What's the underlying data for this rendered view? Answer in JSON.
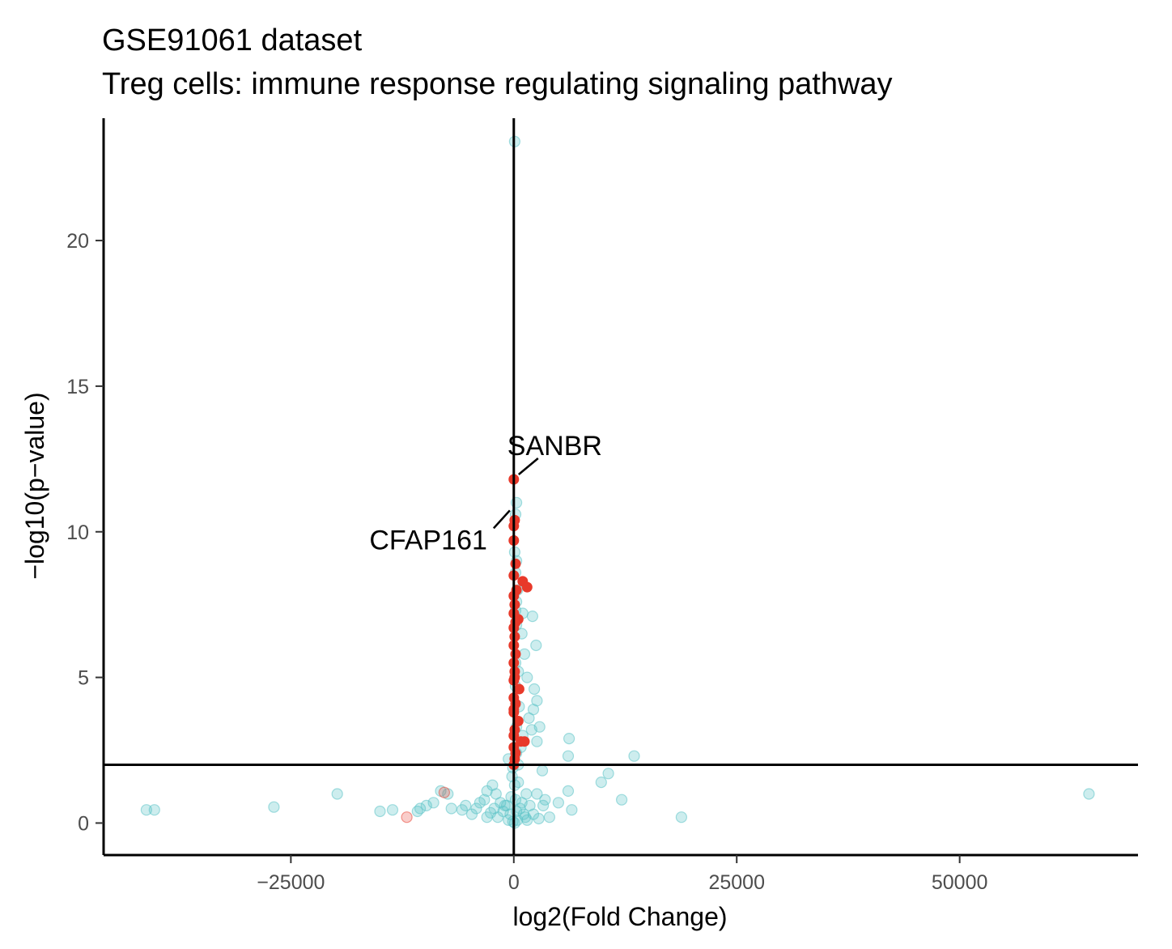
{
  "chart_data": {
    "type": "scatter",
    "title": "GSE91061 dataset",
    "subtitle": "Treg cells: immune response regulating signaling pathway",
    "xlabel": "log2(Fold Change)",
    "ylabel": "−log10(p−value)",
    "xlim": [
      -46000,
      70000
    ],
    "ylim": [
      -1.1,
      24.2
    ],
    "x_ticks": [
      -25000,
      0,
      25000,
      50000
    ],
    "x_tick_labels": [
      "−25000",
      "0",
      "25000",
      "50000"
    ],
    "y_ticks": [
      0,
      5,
      10,
      15,
      20
    ],
    "y_tick_labels": [
      "0",
      "5",
      "10",
      "15",
      "20"
    ],
    "threshold_lines": {
      "vertical_x": 0,
      "horizontal_y": 2
    },
    "grid": false,
    "colors": {
      "background": "#cbe9e9",
      "highlight": "#e8392a",
      "highlight_faded": "#f6bcb4",
      "axis": "#000000"
    },
    "series": [
      {
        "color": "#5bc2c6",
        "opacity": 0.3,
        "points": [
          [
            100,
            23.4
          ],
          [
            300,
            11.0
          ],
          [
            200,
            10.6
          ],
          [
            100,
            9.3
          ],
          [
            300,
            9.0
          ],
          [
            200,
            8.6
          ],
          [
            400,
            8.0
          ],
          [
            300,
            7.6
          ],
          [
            200,
            7.3
          ],
          [
            1000,
            7.2
          ],
          [
            2100,
            7.1
          ],
          [
            300,
            6.8
          ],
          [
            900,
            6.5
          ],
          [
            2500,
            6.1
          ],
          [
            1200,
            5.8
          ],
          [
            200,
            5.5
          ],
          [
            500,
            5.2
          ],
          [
            1500,
            5.0
          ],
          [
            200,
            4.7
          ],
          [
            2300,
            4.6
          ],
          [
            2600,
            4.2
          ],
          [
            600,
            4.0
          ],
          [
            2200,
            3.9
          ],
          [
            1700,
            3.6
          ],
          [
            300,
            3.3
          ],
          [
            2900,
            3.3
          ],
          [
            2000,
            3.2
          ],
          [
            1000,
            3.0
          ],
          [
            2600,
            2.8
          ],
          [
            6200,
            2.9
          ],
          [
            800,
            2.6
          ],
          [
            300,
            2.4
          ],
          [
            6100,
            2.3
          ],
          [
            -600,
            2.2
          ],
          [
            13500,
            2.3
          ],
          [
            500,
            2.0
          ],
          [
            3200,
            1.8
          ],
          [
            10600,
            1.7
          ],
          [
            9800,
            1.4
          ],
          [
            -2400,
            1.3
          ],
          [
            -3000,
            1.1
          ],
          [
            -2000,
            1.0
          ],
          [
            1400,
            1.0
          ],
          [
            2600,
            1.0
          ],
          [
            6100,
            1.1
          ],
          [
            -19800,
            1.0
          ],
          [
            -8200,
            1.1
          ],
          [
            -7400,
            1.0
          ],
          [
            12100,
            0.8
          ],
          [
            64500,
            1.0
          ],
          [
            -3300,
            0.8
          ],
          [
            -1500,
            0.7
          ],
          [
            -800,
            0.6
          ],
          [
            -300,
            0.9
          ],
          [
            200,
            0.8
          ],
          [
            900,
            0.7
          ],
          [
            1800,
            0.6
          ],
          [
            3500,
            0.8
          ],
          [
            5000,
            0.7
          ],
          [
            -9000,
            0.7
          ],
          [
            -9800,
            0.6
          ],
          [
            -10500,
            0.5
          ],
          [
            -7000,
            0.5
          ],
          [
            -5400,
            0.6
          ],
          [
            -4200,
            0.5
          ],
          [
            -26900,
            0.55
          ],
          [
            -41200,
            0.45
          ],
          [
            -40300,
            0.45
          ],
          [
            -15000,
            0.4
          ],
          [
            -13600,
            0.45
          ],
          [
            -10800,
            0.4
          ],
          [
            -3800,
            0.7
          ],
          [
            -2200,
            0.5
          ],
          [
            -1200,
            0.4
          ],
          [
            -400,
            0.3
          ],
          [
            300,
            0.4
          ],
          [
            1100,
            0.3
          ],
          [
            2200,
            0.3
          ],
          [
            3300,
            0.6
          ],
          [
            6500,
            0.45
          ],
          [
            18800,
            0.2
          ],
          [
            -5800,
            0.45
          ],
          [
            -4700,
            0.3
          ],
          [
            -3000,
            0.2
          ],
          [
            -1800,
            0.2
          ],
          [
            -600,
            0.1
          ],
          [
            400,
            0.1
          ],
          [
            1300,
            0.2
          ],
          [
            2800,
            0.15
          ],
          [
            4000,
            0.2
          ],
          [
            -100,
            0.05
          ],
          [
            100,
            0.0
          ],
          [
            -200,
            1.6
          ],
          [
            100,
            1.3
          ],
          [
            -100,
            1.9
          ],
          [
            500,
            1.4
          ],
          [
            1500,
            0.1
          ],
          [
            -2600,
            0.35
          ],
          [
            -1000,
            0.6
          ],
          [
            700,
            0.5
          ]
        ]
      },
      {
        "color": "#e8392a",
        "opacity": 1.0,
        "points": [
          [
            0,
            11.8
          ],
          [
            100,
            10.4
          ],
          [
            0,
            10.2
          ],
          [
            0,
            9.7
          ],
          [
            200,
            8.9
          ],
          [
            0,
            8.5
          ],
          [
            1000,
            8.3
          ],
          [
            1500,
            8.1
          ],
          [
            300,
            8.0
          ],
          [
            0,
            7.8
          ],
          [
            100,
            7.5
          ],
          [
            0,
            7.2
          ],
          [
            500,
            7.0
          ],
          [
            0,
            6.7
          ],
          [
            100,
            6.4
          ],
          [
            0,
            6.1
          ],
          [
            200,
            5.8
          ],
          [
            0,
            5.5
          ],
          [
            100,
            5.2
          ],
          [
            0,
            4.9
          ],
          [
            600,
            4.6
          ],
          [
            0,
            4.3
          ],
          [
            200,
            4.1
          ],
          [
            0,
            3.8
          ],
          [
            500,
            3.5
          ],
          [
            100,
            3.2
          ],
          [
            0,
            3.0
          ],
          [
            800,
            2.8
          ],
          [
            1200,
            2.8
          ],
          [
            0,
            2.6
          ],
          [
            200,
            2.4
          ],
          [
            100,
            2.2
          ],
          [
            0,
            2.0
          ],
          [
            200,
            6.9
          ],
          [
            100,
            5.0
          ],
          [
            0,
            3.9
          ]
        ]
      },
      {
        "color": "#e8392a",
        "opacity": 0.25,
        "points": [
          [
            -12000,
            0.2
          ],
          [
            -7800,
            1.05
          ]
        ]
      }
    ],
    "annotations": [
      {
        "text": "SANBR",
        "x": 0,
        "y": 11.8
      },
      {
        "text": "CFAP161",
        "x": 100,
        "y": 10.4
      }
    ]
  }
}
